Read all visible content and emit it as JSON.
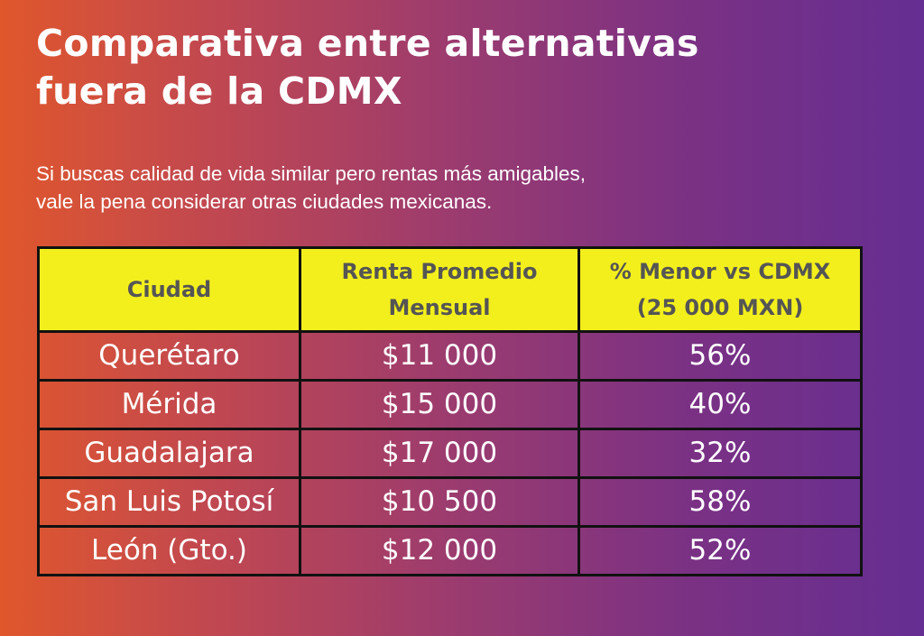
{
  "title_line1": "Comparativa entre alternativas",
  "title_line2": "fuera de la CDMX",
  "subtitle_line1": "Si buscas calidad de vida similar pero rentas más amigables,",
  "subtitle_line2": "vale la pena considerar otras ciudades mexicanas.",
  "table": {
    "headers": [
      {
        "line1": "Ciudad",
        "line2": ""
      },
      {
        "line1": "Renta Promedio",
        "line2": "Mensual"
      },
      {
        "line1": "% Menor vs CDMX",
        "line2": "(25 000 MXN)"
      }
    ],
    "rows": [
      {
        "city": "Querétaro",
        "rent": "$11 000",
        "pct": "56%"
      },
      {
        "city": "Mérida",
        "rent": "$15 000",
        "pct": "40%"
      },
      {
        "city": "Guadalajara",
        "rent": "$17 000",
        "pct": "32%"
      },
      {
        "city": "San Luis Potosí",
        "rent": "$10 500",
        "pct": "58%"
      },
      {
        "city": "León (Gto.)",
        "rent": "$12 000",
        "pct": "52%"
      }
    ]
  },
  "colors": {
    "header_bg": "#f3ef1c",
    "gradient_start": "#e0572c",
    "gradient_end": "#652e92"
  }
}
